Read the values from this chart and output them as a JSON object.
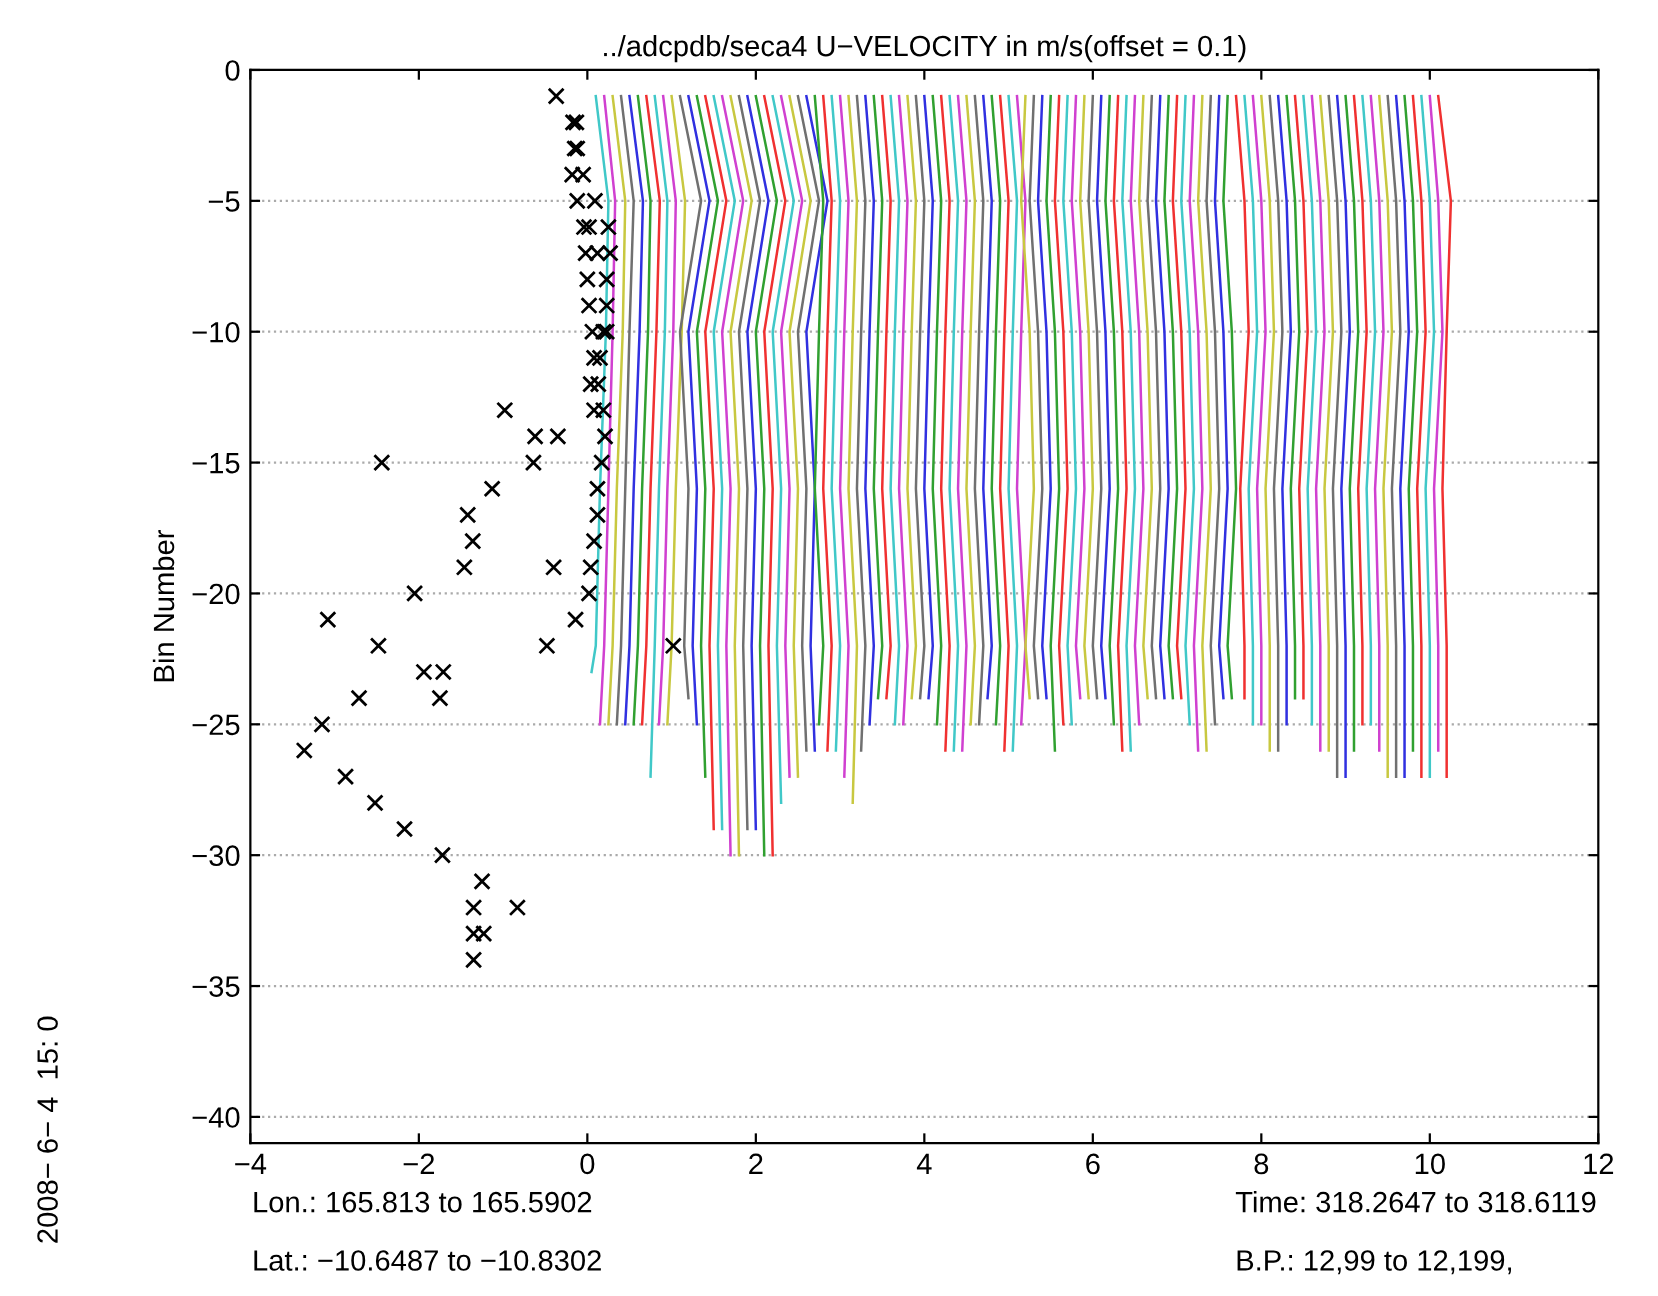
{
  "chart_data": {
    "type": "line",
    "title": "../adcpdb/seca4 U−VELOCITY in m/s(offset = 0.1)",
    "ylabel": "Bin Number",
    "annotations": [
      "Lon.: 165.813 to 165.5902",
      "Lat.: −10.6487 to −10.8302",
      "Time: 318.2647 to 318.6119",
      "B.P.: 12,99 to 12,199,",
      "2008− 6− 4  15: 0"
    ],
    "xlim": [
      -4,
      12
    ],
    "xticks": [
      -4,
      -2,
      0,
      2,
      4,
      6,
      8,
      10,
      12
    ],
    "ylim": [
      -41,
      0
    ],
    "yticks": [
      -40,
      -35,
      -30,
      -25,
      -20,
      -15,
      -10,
      -5,
      0
    ],
    "grid": "y",
    "line_style": "solid",
    "series": [
      {
        "type": "scatter",
        "marker": "cross",
        "color": "#000000",
        "x": [
          -0.37,
          -0.17,
          -0.13,
          -0.15,
          -0.12,
          -0.18,
          -0.05,
          -0.12,
          0.09,
          -0.04,
          0.02,
          0.25,
          -0.02,
          0.12,
          0.27,
          0,
          0.23,
          0.02,
          0.23,
          0.06,
          0.19,
          0.23,
          0.08,
          0.15,
          0.04,
          0.13,
          -0.98,
          0.08,
          0.19,
          -0.62,
          -0.35,
          0.21,
          -2.44,
          -0.64,
          0.17,
          -1.13,
          0.12,
          -1.42,
          0.12,
          -1.36,
          0.08,
          -1.46,
          -0.4,
          0.04,
          -2.05,
          0.02,
          -3.08,
          -0.14,
          -2.48,
          -0.48,
          1.02,
          -1.94,
          -1.71,
          -2.71,
          -1.75,
          -3.15,
          -3.36,
          -2.87,
          -2.52,
          -2.17,
          -1.72,
          -1.25,
          -1.35,
          -0.83,
          -1.35,
          -1.23,
          -1.35
        ],
        "values": [
          -1,
          -2,
          -2,
          -3,
          -3,
          -4,
          -4,
          -5,
          -5,
          -6,
          -6,
          -6,
          -7,
          -7,
          -7,
          -8,
          -8,
          -9,
          -9,
          -10,
          -10,
          -10,
          -11,
          -11,
          -12,
          -12,
          -13,
          -13,
          -13,
          -14,
          -14,
          -14,
          -15,
          -15,
          -15,
          -16,
          -16,
          -17,
          -17,
          -18,
          -18,
          -19,
          -19,
          -19,
          -20,
          -20,
          -21,
          -21,
          -22,
          -22,
          -22,
          -23,
          -23,
          -24,
          -24,
          -25,
          -26,
          -27,
          -28,
          -29,
          -30,
          -31,
          -32,
          -32,
          -33,
          -33,
          -34
        ]
      },
      {
        "color": "#40c8c8",
        "x": [
          0.1,
          0.25,
          0.22,
          0.15,
          0.1,
          0.05
        ],
        "values": [
          -1,
          -5,
          -10,
          -16,
          -22,
          -23
        ]
      },
      {
        "color": "#d040d0",
        "x": [
          0.2,
          0.33,
          0.3,
          0.25,
          0.2,
          0.15
        ],
        "values": [
          -1,
          -5,
          -10,
          -16,
          -22,
          -25
        ]
      },
      {
        "color": "#c8c840",
        "x": [
          0.3,
          0.45,
          0.42,
          0.35,
          0.3,
          0.25
        ],
        "values": [
          -1,
          -5,
          -10,
          -16,
          -22,
          -25
        ]
      },
      {
        "color": "#707070",
        "x": [
          0.4,
          0.55,
          0.5,
          0.45,
          0.4,
          0.35
        ],
        "values": [
          -1,
          -5,
          -10,
          -16,
          -22,
          -25
        ]
      },
      {
        "color": "#3030e0",
        "x": [
          0.5,
          0.66,
          0.62,
          0.55,
          0.5,
          0.45
        ],
        "values": [
          -1,
          -5,
          -10,
          -16,
          -22,
          -25
        ]
      },
      {
        "color": "#30a030",
        "x": [
          0.6,
          0.75,
          0.72,
          0.65,
          0.6,
          0.55
        ],
        "values": [
          -1,
          -5,
          -10,
          -16,
          -22,
          -25
        ]
      },
      {
        "color": "#f03030",
        "x": [
          0.7,
          0.86,
          0.82,
          0.75,
          0.7,
          0.65
        ],
        "values": [
          -1,
          -5,
          -10,
          -16,
          -22,
          -25
        ]
      },
      {
        "color": "#40c8c8",
        "x": [
          0.8,
          0.95,
          0.92,
          0.85,
          0.8,
          0.75
        ],
        "values": [
          -1,
          -5,
          -10,
          -16,
          -22,
          -27
        ]
      },
      {
        "color": "#d040d0",
        "x": [
          0.9,
          1.05,
          1.02,
          0.95,
          0.9,
          0.85
        ],
        "values": [
          -1,
          -5,
          -10,
          -16,
          -22,
          -25
        ]
      },
      {
        "color": "#c8c840",
        "x": [
          1.0,
          1.16,
          1.12,
          1.05,
          1.0,
          0.95
        ],
        "values": [
          -1,
          -5,
          -10,
          -16,
          -22,
          -25
        ]
      },
      {
        "color": "#707070",
        "x": [
          1.1,
          1.35,
          1.1,
          1.2,
          1.15,
          1.2
        ],
        "values": [
          -1,
          -5,
          -10,
          -16,
          -22,
          -24
        ]
      },
      {
        "color": "#3030e0",
        "x": [
          1.2,
          1.45,
          1.2,
          1.3,
          1.25,
          1.3
        ],
        "values": [
          -1,
          -5,
          -10,
          -16,
          -22,
          -25
        ]
      },
      {
        "color": "#30a030",
        "x": [
          1.3,
          1.55,
          1.3,
          1.4,
          1.35,
          1.4
        ],
        "values": [
          -1,
          -5,
          -10,
          -16,
          -22,
          -27
        ]
      },
      {
        "color": "#f03030",
        "x": [
          1.4,
          1.65,
          1.4,
          1.5,
          1.45,
          1.5
        ],
        "values": [
          -1,
          -5,
          -10,
          -16,
          -22,
          -29
        ]
      },
      {
        "color": "#40c8c8",
        "x": [
          1.5,
          1.75,
          1.5,
          1.6,
          1.55,
          1.6
        ],
        "values": [
          -1,
          -5,
          -10,
          -16,
          -22,
          -29
        ]
      },
      {
        "color": "#d040d0",
        "x": [
          1.6,
          1.85,
          1.6,
          1.7,
          1.65,
          1.7
        ],
        "values": [
          -1,
          -5,
          -10,
          -16,
          -22,
          -30
        ]
      },
      {
        "color": "#c8c840",
        "x": [
          1.7,
          1.95,
          1.7,
          1.8,
          1.75,
          1.8
        ],
        "values": [
          -1,
          -5,
          -10,
          -16,
          -22,
          -30
        ]
      },
      {
        "color": "#707070",
        "x": [
          1.8,
          2.05,
          1.8,
          1.9,
          1.85,
          1.9
        ],
        "values": [
          -1,
          -5,
          -10,
          -16,
          -22,
          -29
        ]
      },
      {
        "color": "#3030e0",
        "x": [
          1.9,
          2.15,
          1.9,
          2.0,
          1.95,
          2.0
        ],
        "values": [
          -1,
          -5,
          -10,
          -16,
          -22,
          -29
        ]
      },
      {
        "color": "#30a030",
        "x": [
          2.0,
          2.25,
          2.0,
          2.1,
          2.05,
          2.1
        ],
        "values": [
          -1,
          -5,
          -10,
          -16,
          -22,
          -30
        ]
      },
      {
        "color": "#f03030",
        "x": [
          2.1,
          2.35,
          2.1,
          2.2,
          2.15,
          2.2
        ],
        "values": [
          -1,
          -5,
          -10,
          -16,
          -22,
          -30
        ]
      },
      {
        "color": "#40c8c8",
        "x": [
          2.2,
          2.45,
          2.2,
          2.3,
          2.25,
          2.3
        ],
        "values": [
          -1,
          -5,
          -10,
          -16,
          -22,
          -28
        ]
      },
      {
        "color": "#d040d0",
        "x": [
          2.3,
          2.55,
          2.3,
          2.4,
          2.35,
          2.4
        ],
        "values": [
          -1,
          -5,
          -10,
          -16,
          -22,
          -27
        ]
      },
      {
        "color": "#c8c840",
        "x": [
          2.4,
          2.65,
          2.4,
          2.5,
          2.45,
          2.5
        ],
        "values": [
          -1,
          -5,
          -10,
          -16,
          -22,
          -27
        ]
      },
      {
        "color": "#707070",
        "x": [
          2.5,
          2.75,
          2.5,
          2.6,
          2.55,
          2.6
        ],
        "values": [
          -1,
          -5,
          -10,
          -16,
          -22,
          -26
        ]
      },
      {
        "color": "#3030e0",
        "x": [
          2.6,
          2.85,
          2.6,
          2.7,
          2.65,
          2.7
        ],
        "values": [
          -1,
          -5,
          -10,
          -16,
          -22,
          -26
        ]
      },
      {
        "color": "#30a030",
        "x": [
          2.7,
          2.8,
          2.75,
          2.7,
          2.8,
          2.75
        ],
        "values": [
          -1,
          -5,
          -10,
          -16,
          -22,
          -25
        ]
      },
      {
        "color": "#f03030",
        "x": [
          2.8,
          2.9,
          2.85,
          2.8,
          2.9,
          2.85
        ],
        "values": [
          -1,
          -5,
          -10,
          -16,
          -22,
          -26
        ]
      },
      {
        "color": "#40c8c8",
        "x": [
          2.9,
          3.0,
          2.95,
          2.9,
          3.0,
          2.95
        ],
        "values": [
          -1,
          -5,
          -10,
          -16,
          -22,
          -26
        ]
      },
      {
        "color": "#d040d0",
        "x": [
          3.0,
          3.1,
          3.05,
          3.0,
          3.1,
          3.05
        ],
        "values": [
          -1,
          -5,
          -10,
          -16,
          -22,
          -27
        ]
      },
      {
        "color": "#c8c840",
        "x": [
          3.1,
          3.2,
          3.15,
          3.1,
          3.2,
          3.15
        ],
        "values": [
          -1,
          -5,
          -10,
          -16,
          -22,
          -28
        ]
      },
      {
        "color": "#707070",
        "x": [
          3.2,
          3.3,
          3.25,
          3.2,
          3.3,
          3.25
        ],
        "values": [
          -1,
          -5,
          -10,
          -16,
          -22,
          -26
        ]
      },
      {
        "color": "#3030e0",
        "x": [
          3.3,
          3.4,
          3.35,
          3.3,
          3.4,
          3.35
        ],
        "values": [
          -1,
          -5,
          -10,
          -16,
          -22,
          -25
        ]
      },
      {
        "color": "#30a030",
        "x": [
          3.4,
          3.5,
          3.45,
          3.4,
          3.5,
          3.45
        ],
        "values": [
          -1,
          -5,
          -10,
          -16,
          -22,
          -24
        ]
      },
      {
        "color": "#f03030",
        "x": [
          3.5,
          3.6,
          3.55,
          3.5,
          3.6,
          3.55
        ],
        "values": [
          -1,
          -5,
          -10,
          -16,
          -22,
          -24
        ]
      },
      {
        "color": "#40c8c8",
        "x": [
          3.6,
          3.7,
          3.65,
          3.6,
          3.7,
          3.65
        ],
        "values": [
          -1,
          -5,
          -10,
          -16,
          -22,
          -25
        ]
      },
      {
        "color": "#d040d0",
        "x": [
          3.7,
          3.8,
          3.75,
          3.7,
          3.8,
          3.75
        ],
        "values": [
          -1,
          -5,
          -10,
          -16,
          -22,
          -25
        ]
      },
      {
        "color": "#c8c840",
        "x": [
          3.8,
          3.9,
          3.85,
          3.8,
          3.9,
          3.85
        ],
        "values": [
          -1,
          -5,
          -10,
          -16,
          -22,
          -24
        ]
      },
      {
        "color": "#707070",
        "x": [
          3.9,
          4.0,
          3.95,
          3.9,
          4.0,
          3.95
        ],
        "values": [
          -1,
          -5,
          -10,
          -16,
          -22,
          -24
        ]
      },
      {
        "color": "#3030e0",
        "x": [
          4.0,
          4.1,
          4.05,
          4.0,
          4.1,
          4.05
        ],
        "values": [
          -1,
          -5,
          -10,
          -16,
          -22,
          -24
        ]
      },
      {
        "color": "#30a030",
        "x": [
          4.1,
          4.2,
          4.15,
          4.1,
          4.2,
          4.15
        ],
        "values": [
          -1,
          -5,
          -10,
          -16,
          -22,
          -25
        ]
      },
      {
        "color": "#f03030",
        "x": [
          4.2,
          4.3,
          4.25,
          4.2,
          4.3,
          4.25
        ],
        "values": [
          -1,
          -5,
          -10,
          -16,
          -22,
          -26
        ]
      },
      {
        "color": "#40c8c8",
        "x": [
          4.3,
          4.4,
          4.35,
          4.3,
          4.4,
          4.35
        ],
        "values": [
          -1,
          -5,
          -10,
          -16,
          -22,
          -26
        ]
      },
      {
        "color": "#d040d0",
        "x": [
          4.4,
          4.5,
          4.45,
          4.4,
          4.5,
          4.45
        ],
        "values": [
          -1,
          -5,
          -10,
          -16,
          -22,
          -26
        ]
      },
      {
        "color": "#c8c840",
        "x": [
          4.5,
          4.6,
          4.55,
          4.5,
          4.6,
          4.55
        ],
        "values": [
          -1,
          -5,
          -10,
          -16,
          -22,
          -25
        ]
      },
      {
        "color": "#707070",
        "x": [
          4.6,
          4.7,
          4.65,
          4.6,
          4.7,
          4.65
        ],
        "values": [
          -1,
          -5,
          -10,
          -16,
          -22,
          -25
        ]
      },
      {
        "color": "#3030e0",
        "x": [
          4.7,
          4.8,
          4.75,
          4.7,
          4.8,
          4.75
        ],
        "values": [
          -1,
          -5,
          -10,
          -16,
          -22,
          -24
        ]
      },
      {
        "color": "#30a030",
        "x": [
          4.8,
          4.9,
          4.85,
          4.8,
          4.9,
          4.85
        ],
        "values": [
          -1,
          -5,
          -10,
          -16,
          -22,
          -25
        ]
      },
      {
        "color": "#f03030",
        "x": [
          4.9,
          5.0,
          4.95,
          4.9,
          5.0,
          4.95
        ],
        "values": [
          -1,
          -5,
          -10,
          -16,
          -22,
          -26
        ]
      },
      {
        "color": "#40c8c8",
        "x": [
          5.0,
          5.1,
          5.05,
          5.0,
          5.1,
          5.05
        ],
        "values": [
          -1,
          -5,
          -10,
          -16,
          -22,
          -26
        ]
      },
      {
        "color": "#d040d0",
        "x": [
          5.1,
          5.2,
          5.15,
          5.1,
          5.2,
          5.15
        ],
        "values": [
          -1,
          -5,
          -10,
          -16,
          -22,
          -25
        ]
      },
      {
        "color": "#c8c840",
        "x": [
          5.2,
          5.15,
          5.25,
          5.3,
          5.2,
          5.25
        ],
        "values": [
          -1,
          -5,
          -10,
          -16,
          -22,
          -24
        ]
      },
      {
        "color": "#707070",
        "x": [
          5.3,
          5.25,
          5.35,
          5.4,
          5.3,
          5.35
        ],
        "values": [
          -1,
          -5,
          -10,
          -16,
          -22,
          -24
        ]
      },
      {
        "color": "#3030e0",
        "x": [
          5.4,
          5.35,
          5.45,
          5.5,
          5.4,
          5.45
        ],
        "values": [
          -1,
          -5,
          -10,
          -16,
          -22,
          -24
        ]
      },
      {
        "color": "#30a030",
        "x": [
          5.5,
          5.45,
          5.55,
          5.6,
          5.5,
          5.55
        ],
        "values": [
          -1,
          -5,
          -10,
          -16,
          -22,
          -26
        ]
      },
      {
        "color": "#f03030",
        "x": [
          5.6,
          5.55,
          5.65,
          5.7,
          5.6,
          5.65
        ],
        "values": [
          -1,
          -5,
          -10,
          -16,
          -22,
          -25
        ]
      },
      {
        "color": "#40c8c8",
        "x": [
          5.7,
          5.65,
          5.75,
          5.8,
          5.7,
          5.75
        ],
        "values": [
          -1,
          -5,
          -10,
          -16,
          -22,
          -25
        ]
      },
      {
        "color": "#d040d0",
        "x": [
          5.8,
          5.75,
          5.85,
          5.9,
          5.8,
          5.85
        ],
        "values": [
          -1,
          -5,
          -10,
          -16,
          -22,
          -24
        ]
      },
      {
        "color": "#c8c840",
        "x": [
          5.9,
          5.85,
          5.95,
          6.0,
          5.9,
          5.95
        ],
        "values": [
          -1,
          -5,
          -10,
          -16,
          -22,
          -24
        ]
      },
      {
        "color": "#707070",
        "x": [
          6.0,
          5.95,
          6.05,
          6.1,
          6.0,
          6.05
        ],
        "values": [
          -1,
          -5,
          -10,
          -16,
          -22,
          -24
        ]
      },
      {
        "color": "#3030e0",
        "x": [
          6.1,
          6.05,
          6.15,
          6.2,
          6.1,
          6.15
        ],
        "values": [
          -1,
          -5,
          -10,
          -16,
          -22,
          -24
        ]
      },
      {
        "color": "#30a030",
        "x": [
          6.2,
          6.15,
          6.25,
          6.3,
          6.2,
          6.25
        ],
        "values": [
          -1,
          -5,
          -10,
          -16,
          -22,
          -25
        ]
      },
      {
        "color": "#f03030",
        "x": [
          6.3,
          6.25,
          6.35,
          6.4,
          6.3,
          6.35
        ],
        "values": [
          -1,
          -5,
          -10,
          -16,
          -22,
          -26
        ]
      },
      {
        "color": "#40c8c8",
        "x": [
          6.4,
          6.35,
          6.45,
          6.5,
          6.4,
          6.45
        ],
        "values": [
          -1,
          -5,
          -10,
          -16,
          -22,
          -26
        ]
      },
      {
        "color": "#d040d0",
        "x": [
          6.5,
          6.45,
          6.55,
          6.6,
          6.5,
          6.55
        ],
        "values": [
          -1,
          -5,
          -10,
          -16,
          -22,
          -25
        ]
      },
      {
        "color": "#c8c840",
        "x": [
          6.6,
          6.55,
          6.65,
          6.7,
          6.6,
          6.65
        ],
        "values": [
          -1,
          -5,
          -10,
          -16,
          -22,
          -24
        ]
      },
      {
        "color": "#707070",
        "x": [
          6.7,
          6.65,
          6.75,
          6.8,
          6.7,
          6.75
        ],
        "values": [
          -1,
          -5,
          -10,
          -16,
          -22,
          -24
        ]
      },
      {
        "color": "#3030e0",
        "x": [
          6.8,
          6.75,
          6.85,
          6.9,
          6.8,
          6.85
        ],
        "values": [
          -1,
          -5,
          -10,
          -16,
          -22,
          -24
        ]
      },
      {
        "color": "#30a030",
        "x": [
          6.9,
          6.85,
          6.95,
          7.0,
          6.9,
          6.95
        ],
        "values": [
          -1,
          -5,
          -10,
          -16,
          -22,
          -24
        ]
      },
      {
        "color": "#f03030",
        "x": [
          7.0,
          6.95,
          7.05,
          7.1,
          7.0,
          7.05
        ],
        "values": [
          -1,
          -5,
          -10,
          -16,
          -22,
          -24
        ]
      },
      {
        "color": "#40c8c8",
        "x": [
          7.1,
          7.05,
          7.15,
          7.2,
          7.1,
          7.15
        ],
        "values": [
          -1,
          -5,
          -10,
          -16,
          -22,
          -25
        ]
      },
      {
        "color": "#d040d0",
        "x": [
          7.2,
          7.15,
          7.25,
          7.3,
          7.2,
          7.25
        ],
        "values": [
          -1,
          -5,
          -10,
          -16,
          -22,
          -26
        ]
      },
      {
        "color": "#c8c840",
        "x": [
          7.3,
          7.25,
          7.35,
          7.4,
          7.3,
          7.35
        ],
        "values": [
          -1,
          -5,
          -10,
          -16,
          -22,
          -26
        ]
      },
      {
        "color": "#707070",
        "x": [
          7.4,
          7.35,
          7.45,
          7.5,
          7.4,
          7.45
        ],
        "values": [
          -1,
          -5,
          -10,
          -16,
          -22,
          -25
        ]
      },
      {
        "color": "#3030e0",
        "x": [
          7.5,
          7.45,
          7.55,
          7.6,
          7.5,
          7.55
        ],
        "values": [
          -1,
          -5,
          -10,
          -16,
          -22,
          -24
        ]
      },
      {
        "color": "#30a030",
        "x": [
          7.6,
          7.55,
          7.65,
          7.7,
          7.6,
          7.65
        ],
        "values": [
          -1,
          -5,
          -10,
          -16,
          -22,
          -24
        ]
      },
      {
        "color": "#f03030",
        "x": [
          7.7,
          7.8,
          7.85,
          7.75,
          7.8,
          7.8
        ],
        "values": [
          -1,
          -5,
          -10,
          -16,
          -22,
          -24
        ]
      },
      {
        "color": "#40c8c8",
        "x": [
          7.8,
          7.9,
          7.95,
          7.85,
          7.9,
          7.9
        ],
        "values": [
          -1,
          -5,
          -10,
          -16,
          -22,
          -25
        ]
      },
      {
        "color": "#d040d0",
        "x": [
          7.9,
          8.0,
          8.05,
          7.95,
          8.0,
          8.0
        ],
        "values": [
          -1,
          -5,
          -10,
          -16,
          -22,
          -25
        ]
      },
      {
        "color": "#c8c840",
        "x": [
          8.0,
          8.1,
          8.15,
          8.05,
          8.1,
          8.1
        ],
        "values": [
          -1,
          -5,
          -10,
          -16,
          -22,
          -26
        ]
      },
      {
        "color": "#707070",
        "x": [
          8.1,
          8.2,
          8.25,
          8.15,
          8.2,
          8.2
        ],
        "values": [
          -1,
          -5,
          -10,
          -16,
          -22,
          -26
        ]
      },
      {
        "color": "#3030e0",
        "x": [
          8.2,
          8.3,
          8.35,
          8.25,
          8.3,
          8.3
        ],
        "values": [
          -1,
          -5,
          -10,
          -16,
          -22,
          -25
        ]
      },
      {
        "color": "#30a030",
        "x": [
          8.3,
          8.4,
          8.45,
          8.35,
          8.4,
          8.4
        ],
        "values": [
          -1,
          -5,
          -10,
          -16,
          -22,
          -24
        ]
      },
      {
        "color": "#f03030",
        "x": [
          8.4,
          8.5,
          8.55,
          8.45,
          8.5,
          8.5
        ],
        "values": [
          -1,
          -5,
          -10,
          -16,
          -22,
          -24
        ]
      },
      {
        "color": "#40c8c8",
        "x": [
          8.5,
          8.6,
          8.65,
          8.55,
          8.6,
          8.6
        ],
        "values": [
          -1,
          -5,
          -10,
          -16,
          -22,
          -25
        ]
      },
      {
        "color": "#d040d0",
        "x": [
          8.6,
          8.7,
          8.75,
          8.65,
          8.7,
          8.7
        ],
        "values": [
          -1,
          -5,
          -10,
          -16,
          -22,
          -26
        ]
      },
      {
        "color": "#c8c840",
        "x": [
          8.7,
          8.8,
          8.85,
          8.75,
          8.8,
          8.8
        ],
        "values": [
          -1,
          -5,
          -10,
          -16,
          -22,
          -26
        ]
      },
      {
        "color": "#707070",
        "x": [
          8.8,
          8.9,
          8.95,
          8.85,
          8.9,
          8.9
        ],
        "values": [
          -1,
          -5,
          -10,
          -16,
          -22,
          -27
        ]
      },
      {
        "color": "#3030e0",
        "x": [
          8.9,
          9.0,
          9.05,
          8.95,
          9.0,
          9.0
        ],
        "values": [
          -1,
          -5,
          -10,
          -16,
          -22,
          -27
        ]
      },
      {
        "color": "#30a030",
        "x": [
          9.0,
          9.1,
          9.15,
          9.05,
          9.1,
          9.1
        ],
        "values": [
          -1,
          -5,
          -10,
          -16,
          -22,
          -26
        ]
      },
      {
        "color": "#f03030",
        "x": [
          9.1,
          9.2,
          9.25,
          9.15,
          9.2,
          9.2
        ],
        "values": [
          -1,
          -5,
          -10,
          -16,
          -22,
          -25
        ]
      },
      {
        "color": "#40c8c8",
        "x": [
          9.2,
          9.3,
          9.35,
          9.25,
          9.3,
          9.3
        ],
        "values": [
          -1,
          -5,
          -10,
          -16,
          -22,
          -25
        ]
      },
      {
        "color": "#d040d0",
        "x": [
          9.3,
          9.4,
          9.45,
          9.35,
          9.4,
          9.4
        ],
        "values": [
          -1,
          -5,
          -10,
          -16,
          -22,
          -26
        ]
      },
      {
        "color": "#c8c840",
        "x": [
          9.4,
          9.5,
          9.55,
          9.45,
          9.5,
          9.5
        ],
        "values": [
          -1,
          -5,
          -10,
          -16,
          -22,
          -27
        ]
      },
      {
        "color": "#707070",
        "x": [
          9.5,
          9.6,
          9.65,
          9.55,
          9.6,
          9.6
        ],
        "values": [
          -1,
          -5,
          -10,
          -16,
          -22,
          -27
        ]
      },
      {
        "color": "#3030e0",
        "x": [
          9.6,
          9.7,
          9.75,
          9.65,
          9.7,
          9.7
        ],
        "values": [
          -1,
          -5,
          -10,
          -16,
          -22,
          -27
        ]
      },
      {
        "color": "#30a030",
        "x": [
          9.7,
          9.8,
          9.85,
          9.75,
          9.8,
          9.8
        ],
        "values": [
          -1,
          -5,
          -10,
          -16,
          -22,
          -26
        ]
      },
      {
        "color": "#f03030",
        "x": [
          9.8,
          9.9,
          9.95,
          9.85,
          9.9,
          9.9
        ],
        "values": [
          -1,
          -5,
          -10,
          -16,
          -22,
          -27
        ]
      },
      {
        "color": "#40c8c8",
        "x": [
          9.9,
          10.0,
          10.05,
          9.95,
          10.0,
          10.0
        ],
        "values": [
          -1,
          -5,
          -10,
          -16,
          -22,
          -27
        ]
      },
      {
        "color": "#d040d0",
        "x": [
          10.0,
          10.1,
          10.15,
          10.05,
          10.1,
          10.1
        ],
        "values": [
          -1,
          -5,
          -10,
          -16,
          -22,
          -26
        ]
      },
      {
        "color": "#f03030",
        "x": [
          10.1,
          10.25,
          10.2,
          10.15,
          10.2,
          10.2
        ],
        "values": [
          -1,
          -5,
          -10,
          -16,
          -22,
          -27
        ]
      }
    ]
  }
}
